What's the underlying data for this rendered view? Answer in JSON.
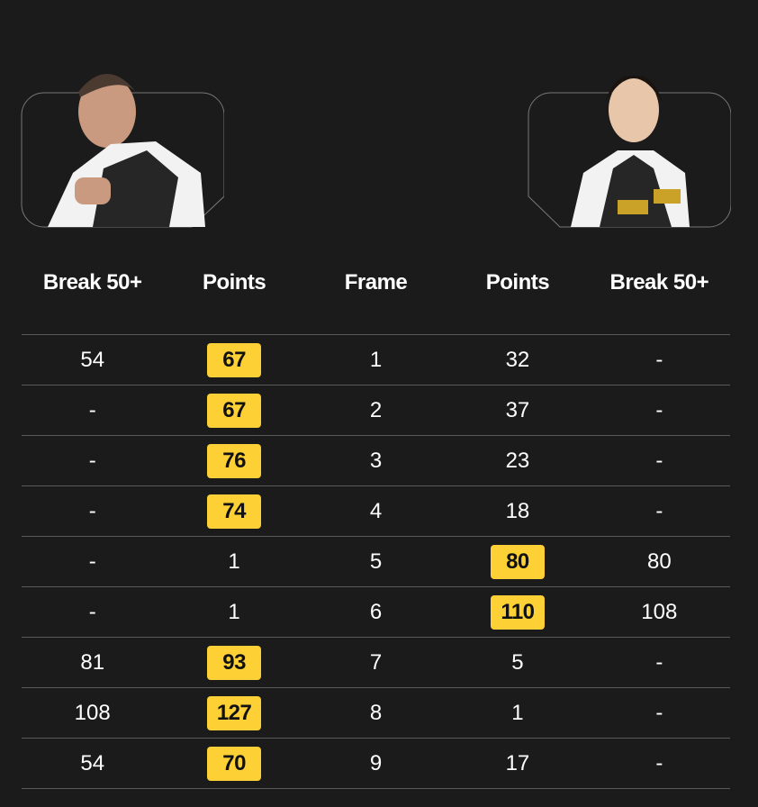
{
  "players": {
    "left": {
      "avatar": "player-photo-male"
    },
    "right": {
      "avatar": "player-photo-female"
    }
  },
  "columns": [
    "Break 50+",
    "Points",
    "Frame",
    "Points",
    "Break 50+"
  ],
  "highlight_color": "#fdd035",
  "rows": [
    {
      "left_break": "54",
      "left_points": "67",
      "frame": "1",
      "right_points": "32",
      "right_break": "-",
      "winner": "left"
    },
    {
      "left_break": "-",
      "left_points": "67",
      "frame": "2",
      "right_points": "37",
      "right_break": "-",
      "winner": "left"
    },
    {
      "left_break": "-",
      "left_points": "76",
      "frame": "3",
      "right_points": "23",
      "right_break": "-",
      "winner": "left"
    },
    {
      "left_break": "-",
      "left_points": "74",
      "frame": "4",
      "right_points": "18",
      "right_break": "-",
      "winner": "left"
    },
    {
      "left_break": "-",
      "left_points": "1",
      "frame": "5",
      "right_points": "80",
      "right_break": "80",
      "winner": "right"
    },
    {
      "left_break": "-",
      "left_points": "1",
      "frame": "6",
      "right_points": "110",
      "right_break": "108",
      "winner": "right"
    },
    {
      "left_break": "81",
      "left_points": "93",
      "frame": "7",
      "right_points": "5",
      "right_break": "-",
      "winner": "left"
    },
    {
      "left_break": "108",
      "left_points": "127",
      "frame": "8",
      "right_points": "1",
      "right_break": "-",
      "winner": "left"
    },
    {
      "left_break": "54",
      "left_points": "70",
      "frame": "9",
      "right_points": "17",
      "right_break": "-",
      "winner": "left"
    }
  ]
}
